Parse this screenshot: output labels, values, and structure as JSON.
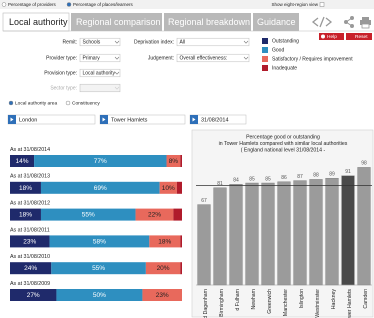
{
  "options": {
    "providers": "Percentage of providers",
    "places": "Percentage of places/learners",
    "eight_region": "Show eight-region view"
  },
  "tabs": [
    "Local authority",
    "Regional comparison",
    "Regional breakdown",
    "Guidance"
  ],
  "buttons": {
    "help": "Help",
    "reset": "Reset"
  },
  "filters": [
    {
      "label": "Remit:",
      "value": "Schools"
    },
    {
      "label": "Deprivation index:",
      "value": "All"
    },
    {
      "label": "Provider type:",
      "value": "Primary"
    },
    {
      "label": "Judgement:",
      "value": "Overall effectiveness:"
    },
    {
      "label": "Provision type:",
      "value": "Local authority"
    },
    {
      "label": "Sector type:"
    }
  ],
  "area_options": [
    "Local authority area",
    "Constituency"
  ],
  "selectors": [
    "London",
    "Tower Hamlets",
    "31/08/2014"
  ],
  "chart_data": [
    {
      "type": "stacked_bar",
      "categories": [
        "As at 31/08/2014",
        "As at 31/08/2013",
        "As at 31/08/2012",
        "As at 31/08/2011",
        "As at 31/08/2010",
        "As at 31/08/2009"
      ],
      "xlim": [
        0,
        100
      ],
      "series": [
        {
          "name": "Outstanding",
          "color": "#1f2a6b",
          "label_color": "#ffffff",
          "values": [
            14,
            18,
            18,
            23,
            24,
            27
          ],
          "value_labels": [
            "14%",
            "18%",
            "18%",
            "23%",
            "24%",
            "27%"
          ]
        },
        {
          "name": "Good",
          "color": "#2e8fc0",
          "label_color": "#ffffff",
          "values": [
            77,
            69,
            55,
            58,
            55,
            50
          ],
          "value_labels": [
            "77%",
            "69%",
            "55%",
            "58%",
            "55%",
            "50%"
          ]
        },
        {
          "name": "Satisfactory / Requires improvement",
          "color": "#e8695c",
          "label_color": "#222222",
          "values": [
            8,
            10,
            22,
            18,
            20,
            23
          ],
          "value_labels": [
            "8%",
            "10%",
            "22%",
            "18%",
            "20%",
            "23%"
          ]
        },
        {
          "name": "Inadequate",
          "color": "#b01b2b",
          "values": [
            1,
            3,
            5,
            1,
            1,
            0
          ]
        }
      ]
    },
    {
      "type": "bar",
      "title": [
        "Percentage good or outstanding",
        "in Tower Hamlets compared with similar local authorities",
        "( England national level 31/08/2014 -"
      ],
      "categories": [
        "d Dagenham",
        "Birmingham",
        "d Fulham",
        "Newham",
        "Greenwich",
        "Manchester",
        "Islington",
        "Westminster",
        "Hackney",
        "wer Hamlets",
        "Camden"
      ],
      "values": [
        67,
        81,
        84,
        85,
        85,
        86,
        87,
        88,
        89,
        91,
        98
      ],
      "colors": [
        "#9b9b9b",
        "#9b9b9b",
        "#9b9b9b",
        "#9b9b9b",
        "#9b9b9b",
        "#9b9b9b",
        "#9b9b9b",
        "#9b9b9b",
        "#9b9b9b",
        "#4a4a4a",
        "#9b9b9b"
      ],
      "ylim": [
        0,
        100
      ],
      "reference_line": 83
    }
  ]
}
